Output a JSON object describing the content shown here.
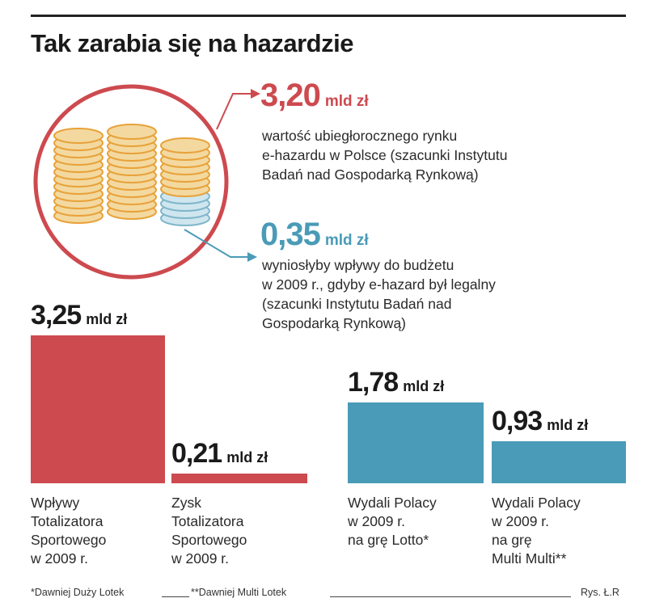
{
  "title": "Tak zarabia się na hazardzie",
  "top_stats": [
    {
      "value": "3,20",
      "unit": "mld zł",
      "desc_lines": [
        "wartość ubiegłorocznego rynku",
        "e-hazardu w Polsce (szacunki Instytutu",
        "Badań nad Gospodarką Rynkową)"
      ]
    },
    {
      "value": "0,35",
      "unit": "mld zł",
      "desc_lines": [
        "wyniosłyby wpływy do budżetu",
        "w 2009 r., gdyby e-hazard był legalny",
        "(szacunki Instytutu Badań nad",
        "Gospodarką Rynkową)"
      ]
    }
  ],
  "chart_data": {
    "type": "bar",
    "categories": [
      "Wpływy Totalizatora Sportowego w 2009 r.",
      "Zysk Totalizatora Sportowego w 2009 r.",
      "Wydali Polacy w 2009 r. na grę Lotto*",
      "Wydali Polacy w 2009 r. na grę Multi Multi**"
    ],
    "values": [
      3.25,
      0.21,
      1.78,
      0.93
    ],
    "value_labels": [
      "3,25",
      "0,21",
      "1,78",
      "0,93"
    ],
    "unit": "mld zł",
    "label_lines": [
      [
        "Wpływy",
        "Totalizatora",
        "Sportowego",
        "w 2009 r."
      ],
      [
        "Zysk",
        "Totalizatora",
        "Sportowego",
        "w 2009 r."
      ],
      [
        "Wydali Polacy",
        "w 2009 r.",
        "na grę Lotto*"
      ],
      [
        "Wydali Polacy",
        "w 2009 r.",
        "na grę",
        "Multi Multi**"
      ]
    ],
    "colors": [
      "#cd4a4f",
      "#cd4a4f",
      "#4a9bb7",
      "#4a9bb7"
    ],
    "ylim": [
      0,
      3.25
    ],
    "grid": false
  },
  "footer": {
    "note1": "*Dawniej  Duży Lotek",
    "note2": "**Dawniej Multi Lotek",
    "credit": "Rys. Ł.R"
  },
  "colors": {
    "red": "#cd4a4f",
    "blue": "#4a9bb7",
    "coin": "#f3d9a0",
    "coin_edge": "#e8a23a",
    "coin_blue": "#cfe6ef"
  }
}
